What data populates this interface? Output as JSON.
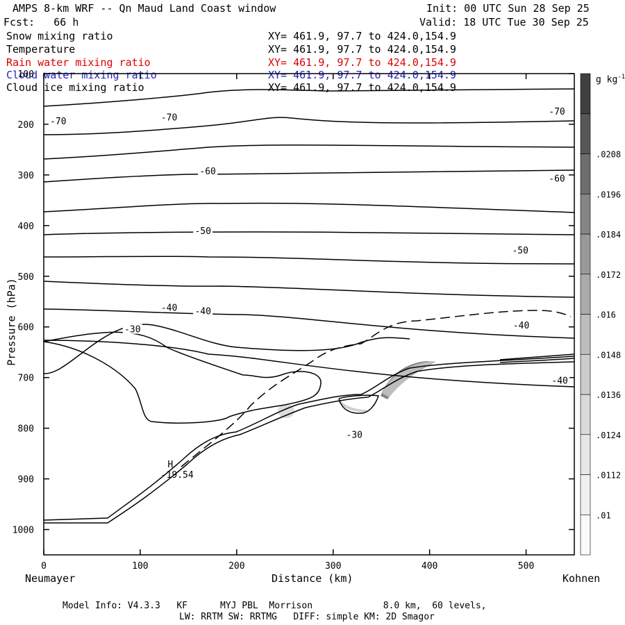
{
  "header": {
    "title": "AMPS 8-km WRF -- Qn Maud Land Coast window",
    "forecast": "Fcst:   66 h",
    "init": "Init: 00 UTC Sun 28 Sep 25",
    "valid": "Valid: 18 UTC Tue 30 Sep 25"
  },
  "legend": [
    {
      "name": "Snow mixing ratio",
      "xy": "XY= 461.9, 97.7 to 424.0,154.9",
      "color": "#000000"
    },
    {
      "name": "Temperature",
      "xy": "XY= 461.9, 97.7 to 424.0,154.9",
      "color": "#000000"
    },
    {
      "name": "Rain water mixing ratio",
      "xy": "XY= 461.9, 97.7 to 424.0,154.9",
      "color": "#dd0000"
    },
    {
      "name": "Cloud water mixing ratio",
      "xy": "XY= 461.9, 97.7 to 424.0,154.9",
      "color": "#1f1fbf"
    },
    {
      "name": "Cloud ice mixing ratio",
      "xy": "XY= 461.9, 97.7 to 424.0,154.9",
      "color": "#000000"
    }
  ],
  "footer": {
    "line1": "Model Info: V4.3.3   KF      MYJ PBL  Morrison             8.0 km,  60 levels,",
    "line2": "LW: RRTM SW: RRTMG   DIFF: simple KM: 2D Smagor"
  },
  "chart_data": {
    "type": "cross-section contour",
    "xlabel": "Distance (km)",
    "ylabel": "Pressure (hPa)",
    "xlim": [
      0,
      550
    ],
    "ylim": [
      1050,
      100
    ],
    "x_ticks": [
      0,
      100,
      200,
      300,
      400,
      500
    ],
    "y_ticks": [
      100,
      200,
      300,
      400,
      500,
      600,
      700,
      800,
      900,
      1000
    ],
    "x_left_label": "Neumayer",
    "x_right_label": "Kohnen",
    "colorbar": {
      "unit": "g kg",
      "unit_exp": "-1",
      "levels": [
        ".01",
        ".0112",
        ".0124",
        ".0136",
        ".0148",
        ".016",
        ".0172",
        ".0184",
        ".0196",
        ".0208"
      ],
      "colors": [
        "#fafafa",
        "#f0f0f0",
        "#e6e6e6",
        "#d9d9d9",
        "#cccccc",
        "#bdbdbd",
        "#ababab",
        "#999999",
        "#858585",
        "#6e6e6e",
        "#575757",
        "#404040"
      ]
    },
    "contour_labels": [
      {
        "text": "-70",
        "x": 15,
        "p": 193
      },
      {
        "text": "-70",
        "x": 130,
        "p": 186
      },
      {
        "text": "-70",
        "x": 532,
        "p": 174
      },
      {
        "text": "-60",
        "x": 170,
        "p": 292
      },
      {
        "text": "-60",
        "x": 532,
        "p": 306
      },
      {
        "text": "-50",
        "x": 165,
        "p": 410
      },
      {
        "text": "-50",
        "x": 494,
        "p": 448
      },
      {
        "text": "-40",
        "x": 130,
        "p": 561
      },
      {
        "text": "-40",
        "x": 165,
        "p": 568
      },
      {
        "text": "-40",
        "x": 495,
        "p": 596
      },
      {
        "text": "-40",
        "x": 535,
        "p": 705
      },
      {
        "text": "-30",
        "x": 92,
        "p": 604
      },
      {
        "text": "-30",
        "x": 322,
        "p": 812
      }
    ],
    "high": {
      "label": "H",
      "value": "-19.54",
      "x": 124,
      "p": 898
    }
  }
}
